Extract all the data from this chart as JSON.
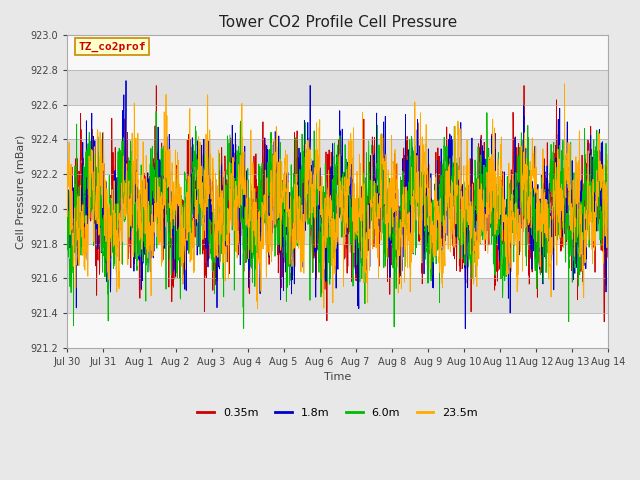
{
  "title": "Tower CO2 Profile Cell Pressure",
  "ylabel": "Cell Pressure (mBar)",
  "xlabel": "Time",
  "annotation_label": "TZ_co2prof",
  "ylim": [
    921.2,
    923.0
  ],
  "yticks": [
    921.2,
    921.4,
    921.6,
    921.8,
    922.0,
    922.2,
    922.4,
    922.6,
    922.8,
    923.0
  ],
  "xtick_labels": [
    "Jul 30",
    "Jul 31",
    "Aug 1",
    "Aug 2",
    "Aug 3",
    "Aug 4",
    "Aug 5",
    "Aug 6",
    "Aug 7",
    "Aug 8",
    "Aug 9",
    "Aug 10",
    "Aug 11",
    "Aug 12",
    "Aug 13",
    "Aug 14"
  ],
  "series": [
    {
      "label": "0.35m",
      "color": "#cc0000"
    },
    {
      "label": "1.8m",
      "color": "#0000cc"
    },
    {
      "label": "6.0m",
      "color": "#00bb00"
    },
    {
      "label": "23.5m",
      "color": "#ffaa00"
    }
  ],
  "n_points": 3000,
  "base_mean": 922.0,
  "background_color": "#e8e8e8",
  "plot_bg_light": "#f8f8f8",
  "plot_bg_dark": "#e0e0e0",
  "title_fontsize": 11,
  "label_fontsize": 8,
  "tick_fontsize": 7,
  "legend_fontsize": 8,
  "annotation_fontsize": 8,
  "linewidth": 0.6
}
